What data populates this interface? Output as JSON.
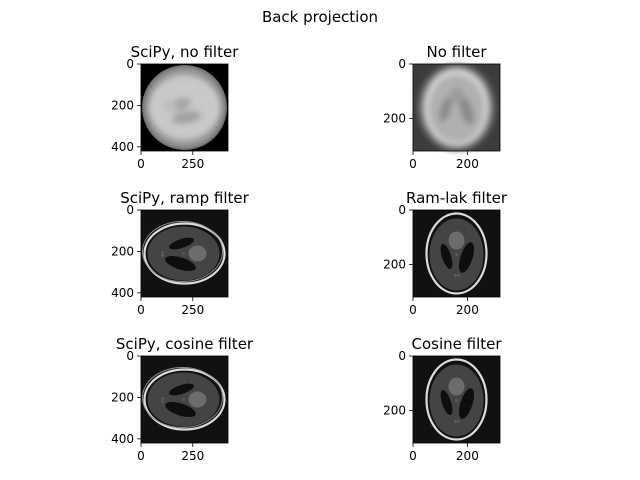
{
  "figure": {
    "title": "Back projection"
  },
  "chart_data": [
    {
      "type": "heatmap",
      "title": "SciPy, no filter",
      "image_size": [
        420,
        420
      ],
      "xticks": [
        0,
        250
      ],
      "yticks": [
        0,
        200,
        400
      ],
      "colormap": "gray",
      "content": "blurred disc",
      "tilt": 0
    },
    {
      "type": "heatmap",
      "title": "No filter",
      "image_size": [
        320,
        320
      ],
      "xticks": [
        0,
        200
      ],
      "yticks": [
        0,
        200
      ],
      "colormap": "gray",
      "content": "blurred phantom"
    },
    {
      "type": "heatmap",
      "title": "SciPy, ramp filter",
      "image_size": [
        420,
        420
      ],
      "xticks": [
        0,
        250
      ],
      "yticks": [
        0,
        200,
        400
      ],
      "colormap": "gray",
      "content": "rotated phantom",
      "tilt": 90
    },
    {
      "type": "heatmap",
      "title": "Ram-lak filter",
      "image_size": [
        320,
        320
      ],
      "xticks": [
        0,
        200
      ],
      "yticks": [
        0,
        200
      ],
      "colormap": "gray",
      "content": "phantom"
    },
    {
      "type": "heatmap",
      "title": "SciPy, cosine filter",
      "image_size": [
        420,
        420
      ],
      "xticks": [
        0,
        250
      ],
      "yticks": [
        0,
        200,
        400
      ],
      "colormap": "gray",
      "content": "rotated phantom",
      "tilt": 90
    },
    {
      "type": "heatmap",
      "title": "Cosine filter",
      "image_size": [
        320,
        320
      ],
      "xticks": [
        0,
        200
      ],
      "yticks": [
        0,
        200
      ],
      "colormap": "gray",
      "content": "phantom"
    }
  ]
}
